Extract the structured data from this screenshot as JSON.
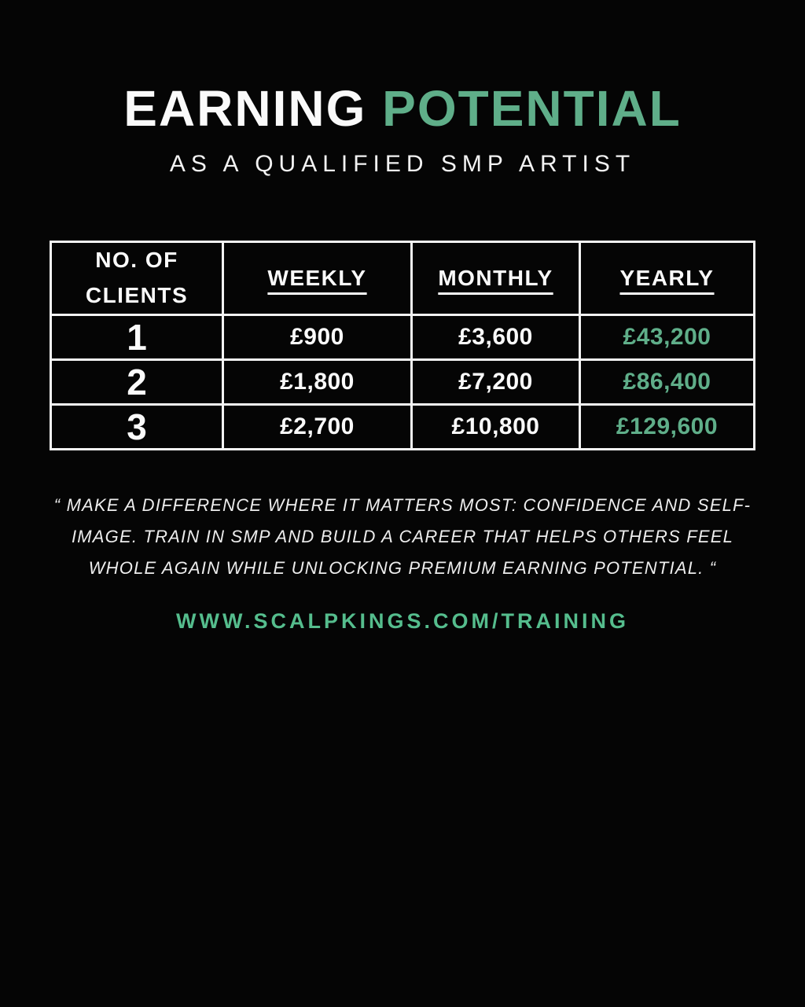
{
  "poster": {
    "background": "#050505",
    "accent_green": "#5fae89",
    "url_green": "#55bd8d",
    "text_white": "#fafafa"
  },
  "header": {
    "title_white": "EARNING",
    "title_green": "POTENTIAL",
    "subtitle": "AS A QUALIFIED SMP ARTIST"
  },
  "table": {
    "headers": {
      "clients": "NO. OF CLIENTS",
      "weekly": "WEEKLY",
      "monthly": "MONTHLY",
      "yearly": "YEARLY"
    },
    "rows": [
      {
        "clients": "1",
        "weekly": "£900",
        "monthly": "£3,600",
        "yearly": "£43,200"
      },
      {
        "clients": "2",
        "weekly": "£1,800",
        "monthly": "£7,200",
        "yearly": "£86,400"
      },
      {
        "clients": "3",
        "weekly": "£2,700",
        "monthly": "£10,800",
        "yearly": "£129,600"
      }
    ]
  },
  "quote": {
    "text": "“ MAKE A DIFFERENCE WHERE IT MATTERS MOST: CONFIDENCE AND SELF-IMAGE. TRAIN IN SMP AND BUILD A CAREER THAT HELPS OTHERS FEEL WHOLE AGAIN WHILE UNLOCKING PREMIUM EARNING POTENTIAL. “"
  },
  "footer": {
    "url": "WWW.SCALPKINGS.COM/TRAINING"
  },
  "chart_data": {
    "type": "table",
    "title": "EARNING POTENTIAL AS A QUALIFIED SMP ARTIST",
    "columns": [
      "NO. OF CLIENTS",
      "WEEKLY",
      "MONTHLY",
      "YEARLY"
    ],
    "rows": [
      [
        "1",
        "£900",
        "£3,600",
        "£43,200"
      ],
      [
        "2",
        "£1,800",
        "£7,200",
        "£86,400"
      ],
      [
        "3",
        "£2,700",
        "£10,800",
        "£129,600"
      ]
    ],
    "currency": "GBP"
  }
}
